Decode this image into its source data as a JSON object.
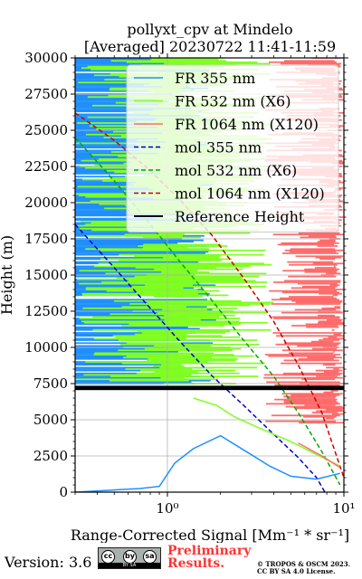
{
  "chart_data": {
    "type": "line",
    "title_line1": "pollyxt_cpv at Mindelo",
    "title_line2": "[Averaged] 20230722 11:41-11:59",
    "xlabel": "Range-Corrected Signal [Mm⁻¹ * sr⁻¹]",
    "ylabel": "Height (m)",
    "xscale": "log",
    "xlim": [
      0.3,
      10
    ],
    "ylim": [
      0,
      30000
    ],
    "yticks": [
      0,
      2500,
      5000,
      7500,
      10000,
      12500,
      15000,
      17500,
      20000,
      22500,
      25000,
      27500,
      30000
    ],
    "yticklabels": [
      "0",
      "2500",
      "5000",
      "7500",
      "10000",
      "12500",
      "15000",
      "17500",
      "20000",
      "22500",
      "25000",
      "27500",
      "30000"
    ],
    "xticks": [
      1,
      10
    ],
    "xticklabels": [
      "10⁰",
      "10¹"
    ],
    "grid": true,
    "legend_placement": "top-right",
    "legend": [
      {
        "label": "FR 355 nm",
        "color": "#1f8fff",
        "style": "solid"
      },
      {
        "label": "FR 532 nm (X6)",
        "color": "#80ff20",
        "style": "solid"
      },
      {
        "label": "FR 1064 nm (X120)",
        "color": "#ff6b6b",
        "style": "solid"
      },
      {
        "label": "mol 355 nm",
        "color": "#0000cc",
        "style": "dashed"
      },
      {
        "label": "mol 532 nm (X6)",
        "color": "#00aa00",
        "style": "dashed"
      },
      {
        "label": "mol 1064 nm (X120)",
        "color": "#cc0000",
        "style": "dashed"
      },
      {
        "label": "Reference Height",
        "color": "#000000",
        "style": "solid"
      }
    ],
    "reference_height": [
      7050,
      7350
    ],
    "series": [
      {
        "name": "mol 355 nm",
        "color": "#0000cc",
        "x": [
          0.3,
          0.5,
          0.8,
          1.2,
          1.8,
          2.7,
          4.0,
          5.5,
          7.0,
          7.8
        ],
        "y": [
          18500,
          15500,
          12700,
          10300,
          8000,
          6000,
          4000,
          2400,
          1000,
          0
        ]
      },
      {
        "name": "mol 532 nm (X6)",
        "color": "#00aa00",
        "x": [
          0.3,
          0.5,
          0.8,
          1.2,
          1.8,
          2.7,
          4.0,
          5.5,
          7.5,
          9.5
        ],
        "y": [
          24500,
          21500,
          18500,
          15800,
          13200,
          10500,
          8000,
          5500,
          2800,
          500
        ]
      },
      {
        "name": "mol 1064 nm (X120)",
        "color": "#cc0000",
        "x": [
          0.3,
          0.5,
          0.8,
          1.2,
          1.8,
          2.7,
          4.0,
          5.5,
          7.5,
          10.0
        ],
        "y": [
          26200,
          24300,
          22200,
          20100,
          17700,
          14800,
          11800,
          8800,
          5500,
          1000
        ]
      },
      {
        "name": "FR 355 nm",
        "color": "#1f8fff",
        "x": [
          0.3,
          0.7,
          0.9,
          1.1,
          1.4,
          2.0,
          2.8,
          3.8,
          5.0,
          7.0,
          9.5
        ],
        "y": [
          0,
          250,
          400,
          2000,
          3000,
          3900,
          2800,
          1800,
          1100,
          900,
          1300
        ]
      },
      {
        "name": "FR 532 nm (X6)",
        "color": "#80ff20",
        "x": [
          1.4,
          1.9,
          2.4,
          3.5,
          5.0,
          7.0,
          9.5
        ],
        "y": [
          6500,
          6000,
          5200,
          4300,
          3500,
          2600,
          1800
        ]
      },
      {
        "name": "FR 1064 nm (X120)",
        "color": "#ff6b6b",
        "x": [
          5.5,
          7.5,
          9.5
        ],
        "y": [
          3400,
          2500,
          1700
        ]
      }
    ],
    "noise_regions": [
      {
        "name": "FR 355 nm",
        "color": "#1f8fff",
        "x_right": 1.5,
        "y_range": [
          7400,
          30000
        ],
        "density": "high"
      },
      {
        "name": "FR 532 nm (X6)",
        "color": "#80ff20",
        "x_right": 4.0,
        "y_range": [
          7400,
          30000
        ],
        "density": "medium"
      },
      {
        "name": "FR 1064 nm (X120)",
        "color": "#ff6b6b",
        "x_right": 10.0,
        "y_range": [
          4700,
          30000
        ],
        "density": "medium"
      }
    ]
  },
  "footer": {
    "version": "Version: 3.6",
    "preliminary_line1": "Preliminary",
    "preliminary_line2": "Results.",
    "copyright_line1": "© TROPOS & OSCM 2023.",
    "copyright_line2": "CC BY SA 4.0 License.",
    "cc_icons": [
      "cc",
      "by",
      "sa"
    ],
    "cc_bar_text": "BY   SA"
  }
}
